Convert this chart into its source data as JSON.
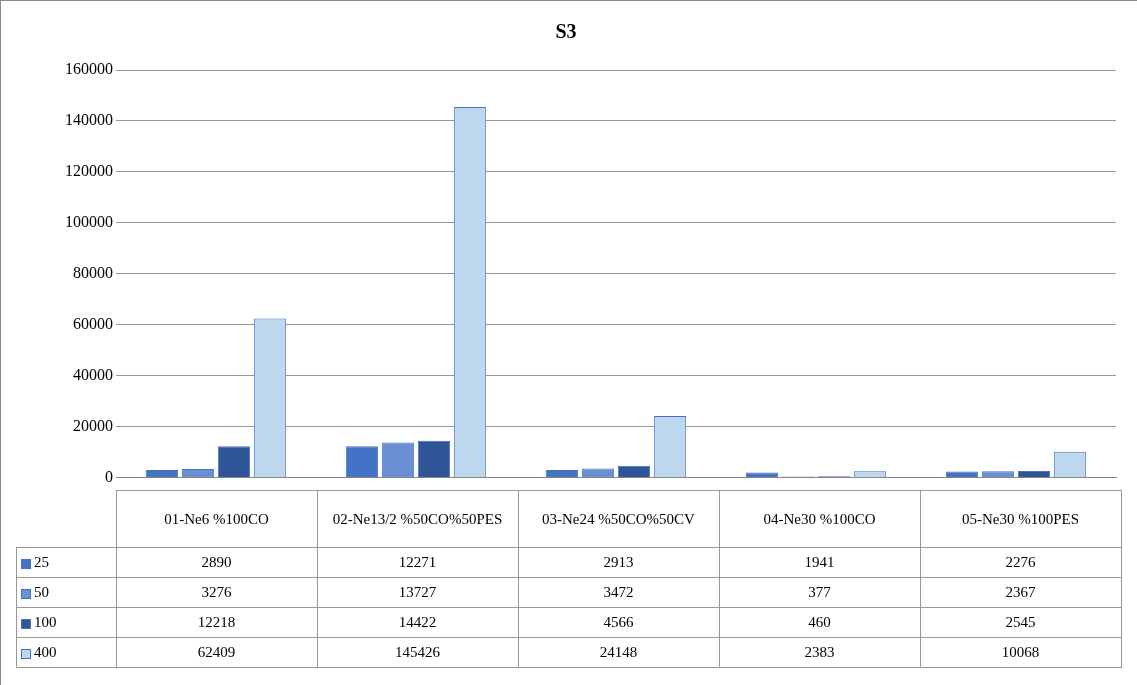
{
  "chart_data": {
    "type": "bar",
    "title": "S3",
    "categories": [
      "01-Ne6 %100CO",
      "02-Ne13/2 %50CO%50PES",
      "03-Ne24 %50CO%50CV",
      "04-Ne30 %100CO",
      "05-Ne30 %100PES"
    ],
    "series": [
      {
        "name": "25",
        "color": "#4472c4",
        "values": [
          2890,
          12271,
          2913,
          1941,
          2276
        ]
      },
      {
        "name": "50",
        "color": "#6b8fd4",
        "values": [
          3276,
          13727,
          3472,
          377,
          2367
        ]
      },
      {
        "name": "100",
        "color": "#2f5597",
        "values": [
          12218,
          14422,
          4566,
          460,
          2545
        ]
      },
      {
        "name": "400",
        "color": "#bdd7ee",
        "values": [
          62409,
          145426,
          24148,
          2383,
          10068
        ]
      }
    ],
    "ylim": [
      0,
      160000
    ],
    "yticks": [
      0,
      20000,
      40000,
      60000,
      80000,
      100000,
      120000,
      140000,
      160000
    ],
    "grid": "y",
    "legend": "bottom",
    "data_labels": true
  }
}
